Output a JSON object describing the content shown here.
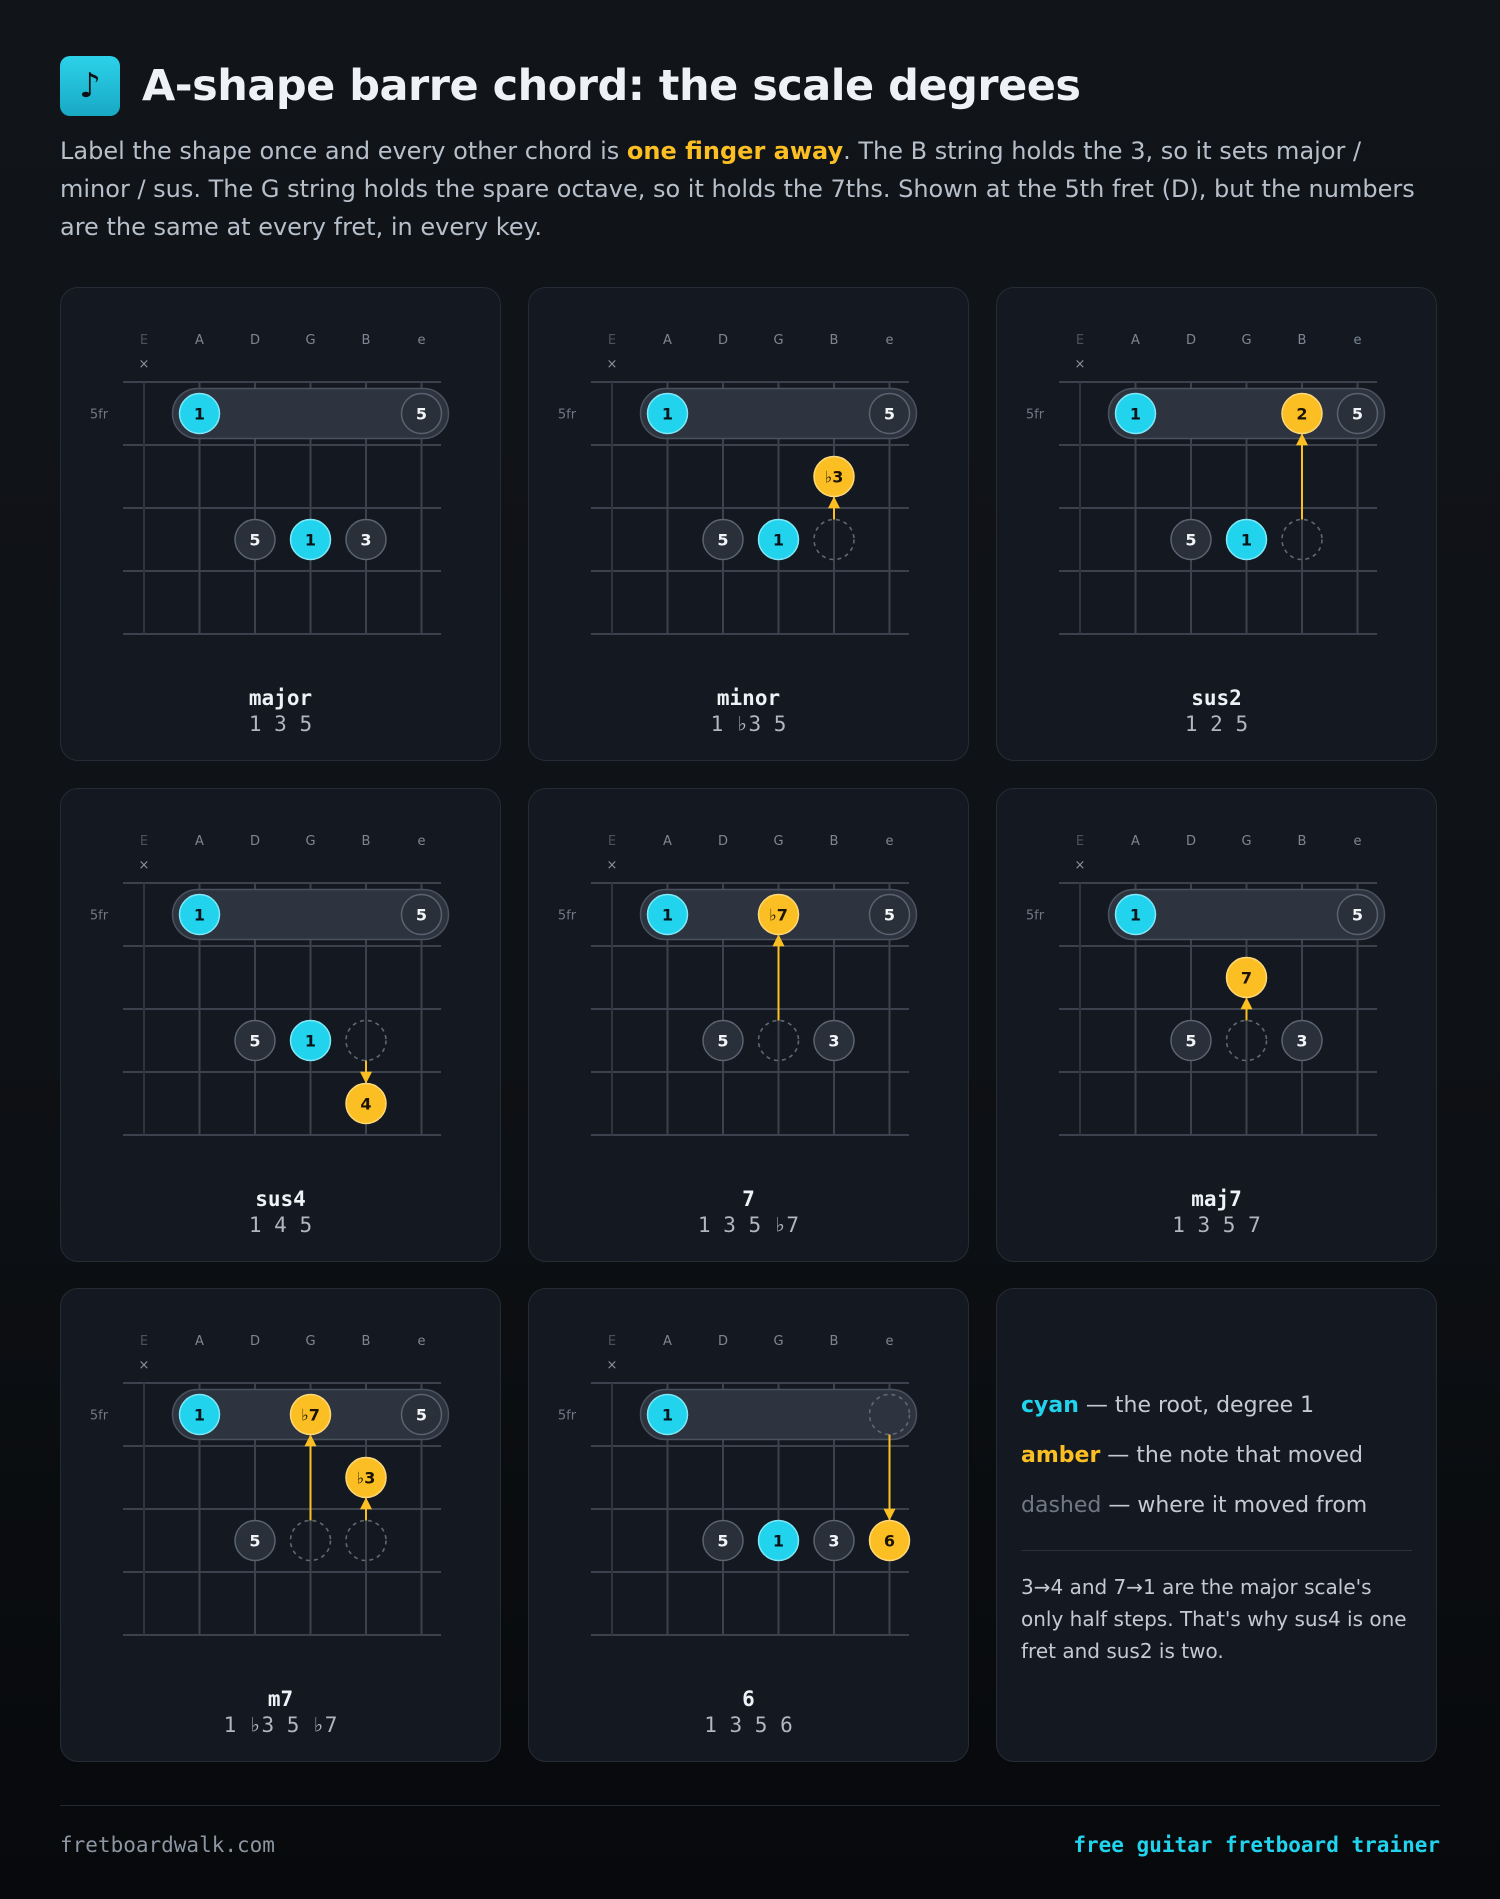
{
  "header": {
    "logo_glyph": "♪",
    "title": "A-shape barre chord: the scale degrees",
    "intro": {
      "pre": "Label the shape once and every other chord is ",
      "highlight": "one finger away",
      "post": ". The B string holds the 3, so it sets major / minor / sus. The G string holds the spare octave, so it holds the 7ths. Shown at the 5th fret (D), but the numbers are the same at every fret, in every key."
    }
  },
  "colors": {
    "root": "#22d3ee",
    "moved": "#fbbf24",
    "neutral_fill": "#2a303a",
    "neutral_stroke": "#5a6370",
    "barre": "#2d343f",
    "string": "#3b424d",
    "card_bg": "#141820"
  },
  "fretboard": {
    "string_labels": [
      "E",
      "A",
      "D",
      "G",
      "B",
      "e"
    ],
    "muted_mark": "×",
    "fret_label": "5fr"
  },
  "chords": [
    {
      "name": "major",
      "degrees": "1 3 5",
      "notes": [
        {
          "string": 1,
          "fret": 1,
          "label": "1",
          "kind": "root"
        },
        {
          "string": 5,
          "fret": 1,
          "label": "5",
          "kind": "neutral"
        },
        {
          "string": 2,
          "fret": 3,
          "label": "5",
          "kind": "neutral"
        },
        {
          "string": 3,
          "fret": 3,
          "label": "1",
          "kind": "root"
        },
        {
          "string": 4,
          "fret": 3,
          "label": "3",
          "kind": "neutral"
        }
      ],
      "ghosts": [],
      "arrows": []
    },
    {
      "name": "minor",
      "degrees": "1 ♭3 5",
      "notes": [
        {
          "string": 1,
          "fret": 1,
          "label": "1",
          "kind": "root"
        },
        {
          "string": 5,
          "fret": 1,
          "label": "5",
          "kind": "neutral"
        },
        {
          "string": 4,
          "fret": 2,
          "label": "♭3",
          "kind": "moved"
        },
        {
          "string": 2,
          "fret": 3,
          "label": "5",
          "kind": "neutral"
        },
        {
          "string": 3,
          "fret": 3,
          "label": "1",
          "kind": "root"
        }
      ],
      "ghosts": [
        {
          "string": 4,
          "fret": 3
        }
      ],
      "arrows": [
        {
          "string": 4,
          "from": 3,
          "to": 2
        }
      ]
    },
    {
      "name": "sus2",
      "degrees": "1 2 5",
      "notes": [
        {
          "string": 1,
          "fret": 1,
          "label": "1",
          "kind": "root"
        },
        {
          "string": 4,
          "fret": 1,
          "label": "2",
          "kind": "moved"
        },
        {
          "string": 5,
          "fret": 1,
          "label": "5",
          "kind": "neutral"
        },
        {
          "string": 2,
          "fret": 3,
          "label": "5",
          "kind": "neutral"
        },
        {
          "string": 3,
          "fret": 3,
          "label": "1",
          "kind": "root"
        }
      ],
      "ghosts": [
        {
          "string": 4,
          "fret": 3
        }
      ],
      "arrows": [
        {
          "string": 4,
          "from": 3,
          "to": 1
        }
      ]
    },
    {
      "name": "sus4",
      "degrees": "1 4 5",
      "notes": [
        {
          "string": 1,
          "fret": 1,
          "label": "1",
          "kind": "root"
        },
        {
          "string": 5,
          "fret": 1,
          "label": "5",
          "kind": "neutral"
        },
        {
          "string": 2,
          "fret": 3,
          "label": "5",
          "kind": "neutral"
        },
        {
          "string": 3,
          "fret": 3,
          "label": "1",
          "kind": "root"
        },
        {
          "string": 4,
          "fret": 4,
          "label": "4",
          "kind": "moved"
        }
      ],
      "ghosts": [
        {
          "string": 4,
          "fret": 3
        }
      ],
      "arrows": [
        {
          "string": 4,
          "from": 3,
          "to": 4
        }
      ]
    },
    {
      "name": "7",
      "degrees": "1 3 5 ♭7",
      "notes": [
        {
          "string": 1,
          "fret": 1,
          "label": "1",
          "kind": "root"
        },
        {
          "string": 3,
          "fret": 1,
          "label": "♭7",
          "kind": "moved"
        },
        {
          "string": 5,
          "fret": 1,
          "label": "5",
          "kind": "neutral"
        },
        {
          "string": 2,
          "fret": 3,
          "label": "5",
          "kind": "neutral"
        },
        {
          "string": 4,
          "fret": 3,
          "label": "3",
          "kind": "neutral"
        }
      ],
      "ghosts": [
        {
          "string": 3,
          "fret": 3
        }
      ],
      "arrows": [
        {
          "string": 3,
          "from": 3,
          "to": 1
        }
      ]
    },
    {
      "name": "maj7",
      "degrees": "1 3 5 7",
      "notes": [
        {
          "string": 1,
          "fret": 1,
          "label": "1",
          "kind": "root"
        },
        {
          "string": 5,
          "fret": 1,
          "label": "5",
          "kind": "neutral"
        },
        {
          "string": 3,
          "fret": 2,
          "label": "7",
          "kind": "moved"
        },
        {
          "string": 2,
          "fret": 3,
          "label": "5",
          "kind": "neutral"
        },
        {
          "string": 4,
          "fret": 3,
          "label": "3",
          "kind": "neutral"
        }
      ],
      "ghosts": [
        {
          "string": 3,
          "fret": 3
        }
      ],
      "arrows": [
        {
          "string": 3,
          "from": 3,
          "to": 2
        }
      ]
    },
    {
      "name": "m7",
      "degrees": "1 ♭3 5 ♭7",
      "notes": [
        {
          "string": 1,
          "fret": 1,
          "label": "1",
          "kind": "root"
        },
        {
          "string": 3,
          "fret": 1,
          "label": "♭7",
          "kind": "moved"
        },
        {
          "string": 5,
          "fret": 1,
          "label": "5",
          "kind": "neutral"
        },
        {
          "string": 4,
          "fret": 2,
          "label": "♭3",
          "kind": "moved"
        },
        {
          "string": 2,
          "fret": 3,
          "label": "5",
          "kind": "neutral"
        }
      ],
      "ghosts": [
        {
          "string": 3,
          "fret": 3
        },
        {
          "string": 4,
          "fret": 3
        }
      ],
      "arrows": [
        {
          "string": 3,
          "from": 3,
          "to": 1
        },
        {
          "string": 4,
          "from": 3,
          "to": 2
        }
      ]
    },
    {
      "name": "6",
      "degrees": "1 3 5 6",
      "notes": [
        {
          "string": 1,
          "fret": 1,
          "label": "1",
          "kind": "root"
        },
        {
          "string": 2,
          "fret": 3,
          "label": "5",
          "kind": "neutral"
        },
        {
          "string": 3,
          "fret": 3,
          "label": "1",
          "kind": "root"
        },
        {
          "string": 4,
          "fret": 3,
          "label": "3",
          "kind": "neutral"
        },
        {
          "string": 5,
          "fret": 3,
          "label": "6",
          "kind": "moved"
        }
      ],
      "ghosts": [
        {
          "string": 5,
          "fret": 1
        }
      ],
      "arrows": [
        {
          "string": 5,
          "from": 1,
          "to": 3
        }
      ]
    }
  ],
  "legend": {
    "root_key": "cyan",
    "root_text": " — the root, degree 1",
    "moved_key": "amber",
    "moved_text": " — the note that moved",
    "ghost_key": "dashed",
    "ghost_text": " — where it moved from",
    "note": "3→4 and 7→1 are the major scale's only half steps. That's why sus4 is one fret and sus2 is two."
  },
  "footer": {
    "site": "fretboardwalk.com",
    "tagline": "free guitar fretboard trainer"
  }
}
